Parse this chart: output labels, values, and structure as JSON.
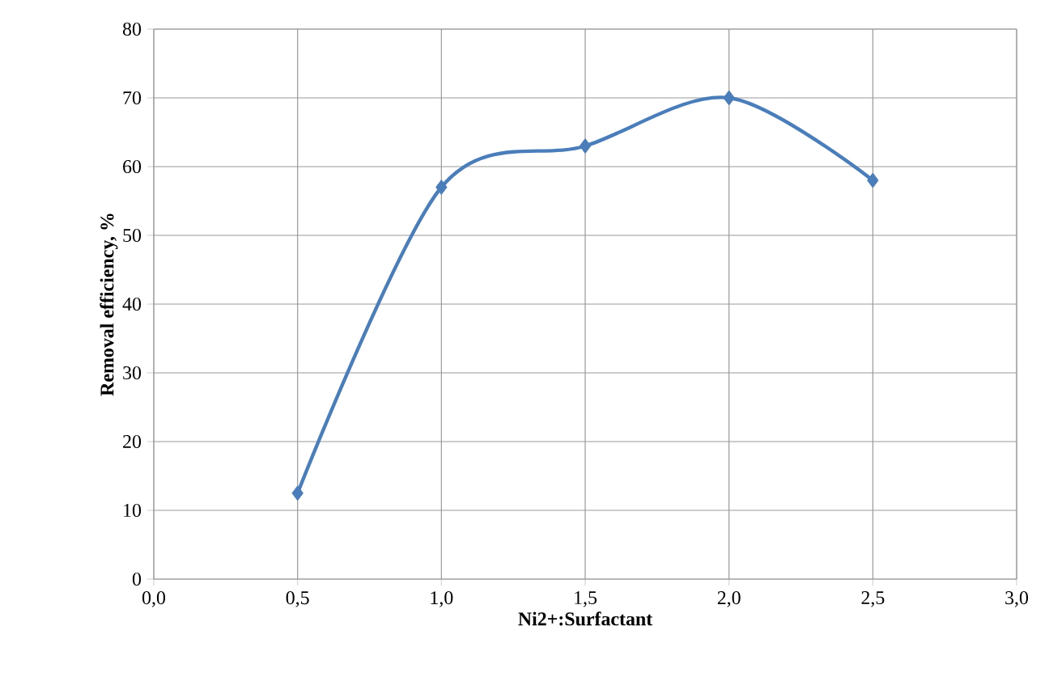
{
  "chart_data": {
    "type": "line",
    "xlabel": "Ni2+:Surfactant",
    "ylabel": "Removal efficiency, %",
    "x": [
      0.5,
      1.0,
      1.5,
      2.0,
      2.5
    ],
    "series": [
      {
        "color": "#4a7ebb",
        "values": [
          12.5,
          57,
          63,
          70,
          58
        ]
      }
    ],
    "xlim": [
      0,
      3
    ],
    "xticks": [
      {
        "value": 0,
        "label": "0,0"
      },
      {
        "value": 0.5,
        "label": "0,5"
      },
      {
        "value": 1,
        "label": "1,0"
      },
      {
        "value": 1.5,
        "label": "1,5"
      },
      {
        "value": 2,
        "label": "2,0"
      },
      {
        "value": 2.5,
        "label": "2,5"
      },
      {
        "value": 3,
        "label": "3,0"
      }
    ],
    "ylim": [
      0,
      80
    ],
    "yticks": [
      0,
      10,
      20,
      30,
      40,
      50,
      60,
      70,
      80
    ],
    "grid": true,
    "marker": "diamond",
    "line_style": "solid"
  }
}
